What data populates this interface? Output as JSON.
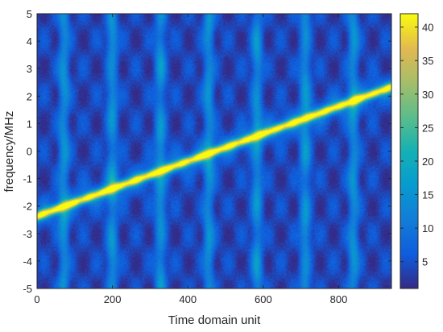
{
  "chart_data": {
    "type": "heatmap",
    "title": "",
    "xlabel": "Time domain unit",
    "ylabel": "frequency/MHz",
    "xlim": [
      0,
      940
    ],
    "ylim": [
      -5,
      5
    ],
    "xticks": [
      0,
      200,
      400,
      600,
      800
    ],
    "yticks": [
      -5,
      -4,
      -3,
      -2,
      -1,
      0,
      1,
      2,
      3,
      4,
      5
    ],
    "colormap": "parula",
    "clim": [
      1,
      42
    ],
    "colorbar_ticks": [
      5,
      10,
      15,
      20,
      25,
      30,
      35,
      40
    ],
    "ridge": {
      "shape": "linear chirp",
      "x": [
        0,
        940
      ],
      "y": [
        -2.35,
        2.35
      ],
      "peak_value": 40
    },
    "background_level": 8,
    "stripe_period": 128,
    "grid": false,
    "legend": "none"
  }
}
